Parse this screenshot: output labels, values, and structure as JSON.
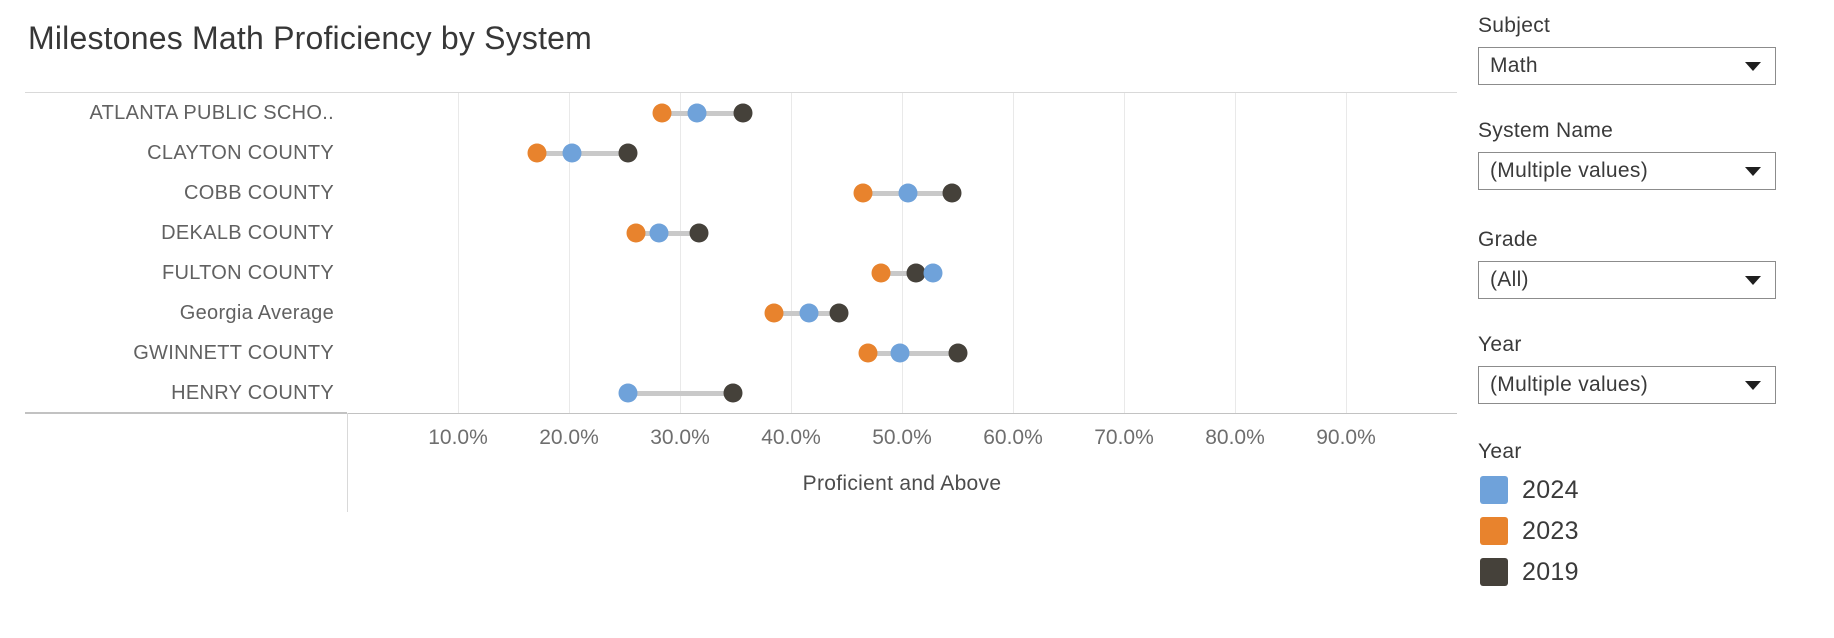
{
  "title": "Milestones Math Proficiency by System",
  "chart_data": {
    "type": "scatter",
    "subtype": "dumbbell-dot-plot",
    "categories": [
      "ATLANTA PUBLIC SCHO..",
      "CLAYTON COUNTY",
      "COBB COUNTY",
      "DEKALB COUNTY",
      "FULTON COUNTY",
      "Georgia Average",
      "GWINNETT COUNTY",
      "HENRY COUNTY"
    ],
    "series": [
      {
        "name": "2024",
        "color": "#6FA2DA",
        "values": [
          31.5,
          20.3,
          50.5,
          28.1,
          52.8,
          41.6,
          49.8,
          25.3
        ]
      },
      {
        "name": "2023",
        "color": "#E8832D",
        "values": [
          28.4,
          17.1,
          46.5,
          26.0,
          48.1,
          38.5,
          46.9,
          null
        ]
      },
      {
        "name": "2019",
        "color": "#45413A",
        "values": [
          35.7,
          25.3,
          54.5,
          31.7,
          51.3,
          44.3,
          55.0,
          34.8
        ]
      }
    ],
    "x_ticks": [
      "10.0%",
      "20.0%",
      "30.0%",
      "40.0%",
      "50.0%",
      "60.0%",
      "70.0%",
      "80.0%",
      "90.0%"
    ],
    "xlim": [
      0,
      100
    ],
    "xlabel": "Proficient and Above",
    "ylabel": "",
    "grid": true,
    "legend_position": "right",
    "connector_color": "#c9c9c9"
  },
  "filters": [
    {
      "label": "Subject",
      "value": "Math"
    },
    {
      "label": "System Name",
      "value": "(Multiple values)"
    },
    {
      "label": "Grade",
      "value": "(All)"
    },
    {
      "label": "Year",
      "value": "(Multiple values)"
    }
  ],
  "legend": {
    "title": "Year",
    "items": [
      {
        "label": "2024",
        "color": "#6FA2DA"
      },
      {
        "label": "2023",
        "color": "#E8832D"
      },
      {
        "label": "2019",
        "color": "#45413A"
      }
    ]
  }
}
